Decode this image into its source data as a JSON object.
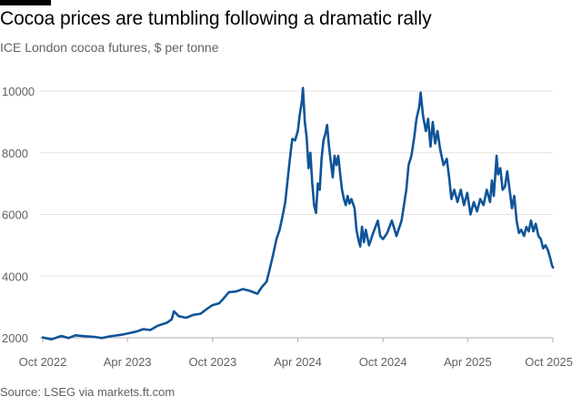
{
  "chart_data": {
    "type": "line",
    "title": "Cocoa prices are tumbling following a dramatic rally",
    "subtitle": "ICE London cocoa futures, $ per tonne",
    "source": "Source: LSEG via markets.ft.com",
    "xlabel": "",
    "ylabel": "",
    "ylim": [
      2000,
      10000
    ],
    "yticks": [
      2000,
      4000,
      6000,
      8000,
      10000
    ],
    "xticks": [
      {
        "date": "2022-10-01",
        "label": "Oct 2022"
      },
      {
        "date": "2023-04-01",
        "label": "Apr 2023"
      },
      {
        "date": "2023-10-01",
        "label": "Oct 2023"
      },
      {
        "date": "2024-04-01",
        "label": "Apr 2024"
      },
      {
        "date": "2024-10-01",
        "label": "Oct 2024"
      },
      {
        "date": "2025-04-01",
        "label": "Apr 2025"
      },
      {
        "date": "2025-10-01",
        "label": "Oct 2025"
      }
    ],
    "xlim": [
      "2022-10-01",
      "2025-10-01"
    ],
    "grid": "horizontal",
    "line_color": "#0f5499",
    "series": [
      {
        "points": [
          [
            "2022-10-01",
            2010
          ],
          [
            "2022-10-20",
            1950
          ],
          [
            "2022-11-10",
            2060
          ],
          [
            "2022-11-25",
            1990
          ],
          [
            "2022-12-10",
            2080
          ],
          [
            "2022-12-31",
            2050
          ],
          [
            "2023-01-20",
            2030
          ],
          [
            "2023-02-05",
            1990
          ],
          [
            "2023-02-20",
            2040
          ],
          [
            "2023-03-05",
            2070
          ],
          [
            "2023-03-20",
            2100
          ],
          [
            "2023-04-05",
            2150
          ],
          [
            "2023-04-20",
            2200
          ],
          [
            "2023-05-05",
            2280
          ],
          [
            "2023-05-20",
            2250
          ],
          [
            "2023-06-05",
            2390
          ],
          [
            "2023-06-15",
            2440
          ],
          [
            "2023-06-25",
            2490
          ],
          [
            "2023-07-05",
            2600
          ],
          [
            "2023-07-10",
            2860
          ],
          [
            "2023-07-20",
            2700
          ],
          [
            "2023-08-05",
            2650
          ],
          [
            "2023-08-20",
            2740
          ],
          [
            "2023-09-05",
            2780
          ],
          [
            "2023-09-20",
            2950
          ],
          [
            "2023-10-01",
            3060
          ],
          [
            "2023-10-15",
            3120
          ],
          [
            "2023-10-25",
            3280
          ],
          [
            "2023-11-05",
            3480
          ],
          [
            "2023-11-20",
            3500
          ],
          [
            "2023-12-05",
            3580
          ],
          [
            "2023-12-20",
            3520
          ],
          [
            "2024-01-05",
            3430
          ],
          [
            "2024-01-15",
            3650
          ],
          [
            "2024-01-25",
            3820
          ],
          [
            "2024-02-01",
            4250
          ],
          [
            "2024-02-08",
            4700
          ],
          [
            "2024-02-15",
            5200
          ],
          [
            "2024-02-22",
            5500
          ],
          [
            "2024-02-29",
            6000
          ],
          [
            "2024-03-05",
            6400
          ],
          [
            "2024-03-10",
            7100
          ],
          [
            "2024-03-15",
            7800
          ],
          [
            "2024-03-20",
            8450
          ],
          [
            "2024-03-26",
            8400
          ],
          [
            "2024-04-01",
            8700
          ],
          [
            "2024-04-05",
            9200
          ],
          [
            "2024-04-10",
            9700
          ],
          [
            "2024-04-12",
            10100
          ],
          [
            "2024-04-16",
            9000
          ],
          [
            "2024-04-20",
            8500
          ],
          [
            "2024-04-24",
            7500
          ],
          [
            "2024-04-28",
            8000
          ],
          [
            "2024-05-02",
            7000
          ],
          [
            "2024-05-06",
            6300
          ],
          [
            "2024-05-10",
            6050
          ],
          [
            "2024-05-14",
            7000
          ],
          [
            "2024-05-18",
            6800
          ],
          [
            "2024-05-22",
            7800
          ],
          [
            "2024-05-26",
            8400
          ],
          [
            "2024-05-30",
            8600
          ],
          [
            "2024-06-03",
            8900
          ],
          [
            "2024-06-07",
            8200
          ],
          [
            "2024-06-11",
            7700
          ],
          [
            "2024-06-15",
            7200
          ],
          [
            "2024-06-19",
            7900
          ],
          [
            "2024-06-23",
            7600
          ],
          [
            "2024-06-27",
            7900
          ],
          [
            "2024-07-01",
            7300
          ],
          [
            "2024-07-05",
            6800
          ],
          [
            "2024-07-09",
            6500
          ],
          [
            "2024-07-13",
            6300
          ],
          [
            "2024-07-17",
            6600
          ],
          [
            "2024-07-21",
            6350
          ],
          [
            "2024-07-25",
            6500
          ],
          [
            "2024-08-01",
            6200
          ],
          [
            "2024-08-05",
            5500
          ],
          [
            "2024-08-09",
            5200
          ],
          [
            "2024-08-13",
            4960
          ],
          [
            "2024-08-17",
            5600
          ],
          [
            "2024-08-21",
            5100
          ],
          [
            "2024-08-25",
            5500
          ],
          [
            "2024-09-01",
            5000
          ],
          [
            "2024-09-10",
            5400
          ],
          [
            "2024-09-20",
            5800
          ],
          [
            "2024-09-25",
            5300
          ],
          [
            "2024-10-01",
            5200
          ],
          [
            "2024-10-10",
            5400
          ],
          [
            "2024-10-20",
            5800
          ],
          [
            "2024-10-30",
            5300
          ],
          [
            "2024-11-10",
            5800
          ],
          [
            "2024-11-20",
            6800
          ],
          [
            "2024-11-25",
            7600
          ],
          [
            "2024-12-01",
            7900
          ],
          [
            "2024-12-07",
            8500
          ],
          [
            "2024-12-12",
            9100
          ],
          [
            "2024-12-18",
            9500
          ],
          [
            "2024-12-21",
            9950
          ],
          [
            "2024-12-26",
            9200
          ],
          [
            "2025-01-01",
            8700
          ],
          [
            "2025-01-06",
            9100
          ],
          [
            "2025-01-11",
            8200
          ],
          [
            "2025-01-16",
            9000
          ],
          [
            "2025-01-21",
            8300
          ],
          [
            "2025-01-26",
            8700
          ],
          [
            "2025-02-01",
            8100
          ],
          [
            "2025-02-08",
            7600
          ],
          [
            "2025-02-15",
            7800
          ],
          [
            "2025-02-20",
            7200
          ],
          [
            "2025-02-25",
            6500
          ],
          [
            "2025-03-03",
            6800
          ],
          [
            "2025-03-10",
            6400
          ],
          [
            "2025-03-17",
            6800
          ],
          [
            "2025-03-24",
            6300
          ],
          [
            "2025-03-31",
            6700
          ],
          [
            "2025-04-07",
            6000
          ],
          [
            "2025-04-14",
            6400
          ],
          [
            "2025-04-21",
            6100
          ],
          [
            "2025-04-28",
            6500
          ],
          [
            "2025-05-05",
            6300
          ],
          [
            "2025-05-12",
            6800
          ],
          [
            "2025-05-19",
            6400
          ],
          [
            "2025-05-23",
            7100
          ],
          [
            "2025-05-27",
            6600
          ],
          [
            "2025-06-02",
            7900
          ],
          [
            "2025-06-05",
            7300
          ],
          [
            "2025-06-10",
            7500
          ],
          [
            "2025-06-15",
            6800
          ],
          [
            "2025-06-20",
            6900
          ],
          [
            "2025-06-25",
            7400
          ],
          [
            "2025-06-30",
            6800
          ],
          [
            "2025-07-05",
            6200
          ],
          [
            "2025-07-10",
            6600
          ],
          [
            "2025-07-15",
            5800
          ],
          [
            "2025-07-20",
            5400
          ],
          [
            "2025-07-25",
            5500
          ],
          [
            "2025-07-31",
            5300
          ],
          [
            "2025-08-05",
            5600
          ],
          [
            "2025-08-10",
            5450
          ],
          [
            "2025-08-15",
            5800
          ],
          [
            "2025-08-20",
            5450
          ],
          [
            "2025-08-25",
            5700
          ],
          [
            "2025-08-31",
            5300
          ],
          [
            "2025-09-05",
            5200
          ],
          [
            "2025-09-10",
            4900
          ],
          [
            "2025-09-15",
            5000
          ],
          [
            "2025-09-20",
            4850
          ],
          [
            "2025-09-25",
            4600
          ],
          [
            "2025-09-29",
            4350
          ],
          [
            "2025-10-01",
            4280
          ]
        ]
      }
    ]
  }
}
